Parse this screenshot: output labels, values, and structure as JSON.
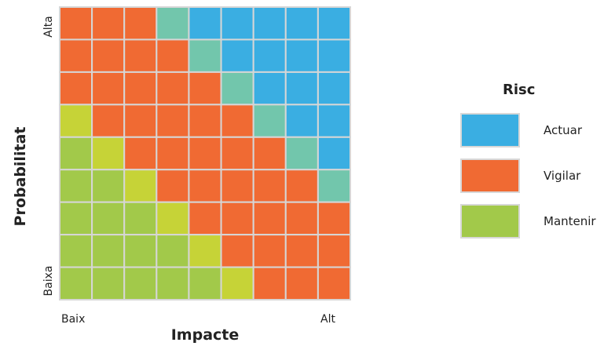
{
  "chart_data": {
    "type": "heatmap",
    "ylabel": "Probabilitat",
    "xlabel": "Impacte",
    "y_ticks": {
      "top": "Alta",
      "bottom": "Baixa"
    },
    "x_ticks": {
      "left": "Baix",
      "right": "Alt"
    },
    "legend": {
      "title": "Risc",
      "placement": "right",
      "items": [
        {
          "label": "Actuar",
          "color": "#3aaee2"
        },
        {
          "label": "Vigilar",
          "color": "#f06a33"
        },
        {
          "label": "Mantenir",
          "color": "#a2c94a"
        }
      ]
    },
    "colors": {
      "A": "#3aaee2",
      "V": "#f06a33",
      "M": "#a2c94a",
      "T": "#72c6ac",
      "Y": "#c6d337"
    },
    "rows_top_to_bottom": [
      [
        "V",
        "V",
        "V",
        "T",
        "A",
        "A",
        "A",
        "A",
        "A"
      ],
      [
        "V",
        "V",
        "V",
        "V",
        "T",
        "A",
        "A",
        "A",
        "A"
      ],
      [
        "V",
        "V",
        "V",
        "V",
        "V",
        "T",
        "A",
        "A",
        "A"
      ],
      [
        "Y",
        "V",
        "V",
        "V",
        "V",
        "V",
        "T",
        "A",
        "A"
      ],
      [
        "M",
        "Y",
        "V",
        "V",
        "V",
        "V",
        "V",
        "T",
        "A"
      ],
      [
        "M",
        "M",
        "Y",
        "V",
        "V",
        "V",
        "V",
        "V",
        "T"
      ],
      [
        "M",
        "M",
        "M",
        "Y",
        "V",
        "V",
        "V",
        "V",
        "V"
      ],
      [
        "M",
        "M",
        "M",
        "M",
        "Y",
        "V",
        "V",
        "V",
        "V"
      ],
      [
        "M",
        "M",
        "M",
        "M",
        "M",
        "Y",
        "V",
        "V",
        "V"
      ]
    ]
  }
}
